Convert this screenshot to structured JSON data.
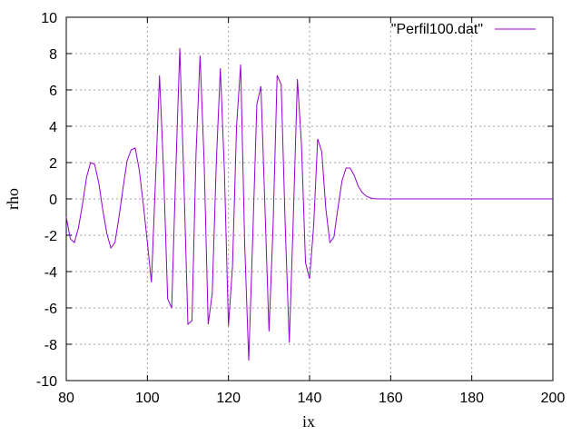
{
  "chart_data": {
    "type": "line",
    "title": "",
    "xlabel": "ix",
    "ylabel": "rho",
    "xlim": [
      80,
      200
    ],
    "ylim": [
      -10,
      10
    ],
    "xticks": [
      80,
      100,
      120,
      140,
      160,
      180,
      200
    ],
    "yticks": [
      -10,
      -8,
      -6,
      -4,
      -2,
      0,
      2,
      4,
      6,
      8,
      10
    ],
    "grid": true,
    "legend_position": "top-right",
    "series": [
      {
        "name": "\"Perfil100.dat\"",
        "color": "#9400d3",
        "x": [
          80,
          81,
          82,
          83,
          84,
          85,
          86,
          87,
          88,
          89,
          90,
          91,
          92,
          93,
          94,
          95,
          96,
          97,
          98,
          99,
          100,
          101,
          102,
          103,
          104,
          105,
          106,
          107,
          108,
          109,
          110,
          111,
          112,
          113,
          114,
          115,
          116,
          117,
          118,
          119,
          120,
          121,
          122,
          123,
          124,
          125,
          126,
          127,
          128,
          129,
          130,
          131,
          132,
          133,
          134,
          135,
          136,
          137,
          138,
          139,
          140,
          141,
          142,
          143,
          144,
          145,
          146,
          147,
          148,
          149,
          150,
          151,
          152,
          153,
          154,
          155,
          156,
          157,
          158,
          200
        ],
        "y": [
          -1.0,
          -2.2,
          -2.4,
          -1.6,
          -0.3,
          1.2,
          2.0,
          1.9,
          0.9,
          -0.6,
          -1.9,
          -2.7,
          -2.4,
          -1.0,
          0.6,
          2.1,
          2.7,
          2.8,
          1.6,
          -0.3,
          -2.4,
          -4.6,
          1.0,
          6.8,
          1.5,
          -5.5,
          -6.0,
          1.5,
          8.3,
          1.0,
          -6.9,
          -6.7,
          2.5,
          7.9,
          2.0,
          -6.9,
          -5.2,
          2.0,
          7.2,
          1.5,
          -7.0,
          -3.7,
          4.0,
          7.4,
          -2.5,
          -8.9,
          -2.0,
          5.2,
          6.2,
          -0.5,
          -7.3,
          -1.5,
          6.8,
          6.3,
          -1.5,
          -7.9,
          -1.0,
          6.6,
          3.0,
          -3.5,
          -4.4,
          -1.5,
          3.3,
          2.6,
          -0.5,
          -2.4,
          -2.1,
          -0.5,
          1.0,
          1.7,
          1.7,
          1.3,
          0.7,
          0.35,
          0.15,
          0.05,
          0.01,
          0.0,
          0.0,
          0.0
        ]
      }
    ]
  }
}
